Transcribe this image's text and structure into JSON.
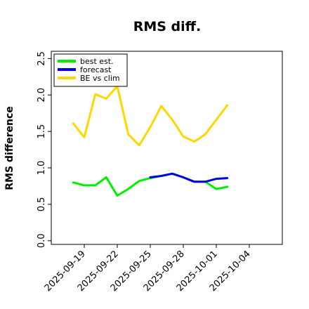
{
  "chart_data": {
    "type": "line",
    "title": "RMS diff.",
    "xlabel": "",
    "ylabel": "RMS difference",
    "ylim": [
      -0.05,
      2.6
    ],
    "xlim": [
      "2025-09-16",
      "2025-10-07"
    ],
    "yticks": [
      {
        "value": 0.0,
        "label": "0.0"
      },
      {
        "value": 0.5,
        "label": "0.5"
      },
      {
        "value": 1.0,
        "label": "1.0"
      },
      {
        "value": 1.5,
        "label": "1.5"
      },
      {
        "value": 2.0,
        "label": "2.0"
      },
      {
        "value": 2.5,
        "label": "2.5"
      }
    ],
    "xticks": [
      {
        "value": "2025-09-19",
        "label": "2025-09-19",
        "color": "#000000"
      },
      {
        "value": "2025-09-22",
        "label": "2025-09-22",
        "color": "#000000"
      },
      {
        "value": "2025-09-25",
        "label": "2025-09-25",
        "color": "#228b22"
      },
      {
        "value": "2025-09-28",
        "label": "2025-09-28",
        "color": "#000000"
      },
      {
        "value": "2025-10-01",
        "label": "2025-10-01",
        "color": "#000000"
      },
      {
        "value": "2025-10-04",
        "label": "2025-10-04",
        "color": "#000000"
      }
    ],
    "legend_position": "top-left",
    "grid": false,
    "series": [
      {
        "name": "best est.",
        "color": "#00ee00",
        "points": [
          {
            "x": "2025-09-18",
            "y": 0.8
          },
          {
            "x": "2025-09-19",
            "y": 0.76
          },
          {
            "x": "2025-09-20",
            "y": 0.76
          },
          {
            "x": "2025-09-21",
            "y": 0.87
          },
          {
            "x": "2025-09-22",
            "y": 0.62
          },
          {
            "x": "2025-09-23",
            "y": 0.71
          },
          {
            "x": "2025-09-24",
            "y": 0.82
          },
          {
            "x": "2025-09-25",
            "y": 0.86
          },
          {
            "x": "2025-09-26",
            "y": 0.89
          },
          {
            "x": "2025-09-27",
            "y": 0.92
          },
          {
            "x": "2025-09-28",
            "y": 0.87
          },
          {
            "x": "2025-09-29",
            "y": 0.81
          },
          {
            "x": "2025-09-30",
            "y": 0.81
          },
          {
            "x": "2025-10-01",
            "y": 0.71
          },
          {
            "x": "2025-10-02",
            "y": 0.74
          }
        ]
      },
      {
        "name": "forecast",
        "color": "#0000ee",
        "points": [
          {
            "x": "2025-09-25",
            "y": 0.87
          },
          {
            "x": "2025-09-26",
            "y": 0.89
          },
          {
            "x": "2025-09-27",
            "y": 0.92
          },
          {
            "x": "2025-09-28",
            "y": 0.87
          },
          {
            "x": "2025-09-29",
            "y": 0.81
          },
          {
            "x": "2025-09-30",
            "y": 0.81
          },
          {
            "x": "2025-10-01",
            "y": 0.85
          },
          {
            "x": "2025-10-02",
            "y": 0.86
          }
        ]
      },
      {
        "name": "BE vs clim",
        "color": "#ffd700",
        "points": [
          {
            "x": "2025-09-18",
            "y": 1.61
          },
          {
            "x": "2025-09-19",
            "y": 1.42
          },
          {
            "x": "2025-09-20",
            "y": 2.01
          },
          {
            "x": "2025-09-21",
            "y": 1.95
          },
          {
            "x": "2025-09-22",
            "y": 2.12
          },
          {
            "x": "2025-09-23",
            "y": 1.46
          },
          {
            "x": "2025-09-24",
            "y": 1.31
          },
          {
            "x": "2025-09-25",
            "y": 1.56
          },
          {
            "x": "2025-09-26",
            "y": 1.85
          },
          {
            "x": "2025-09-27",
            "y": 1.66
          },
          {
            "x": "2025-09-28",
            "y": 1.43
          },
          {
            "x": "2025-09-29",
            "y": 1.36
          },
          {
            "x": "2025-09-30",
            "y": 1.46
          },
          {
            "x": "2025-10-01",
            "y": 1.66
          },
          {
            "x": "2025-10-02",
            "y": 1.86
          }
        ]
      }
    ]
  }
}
